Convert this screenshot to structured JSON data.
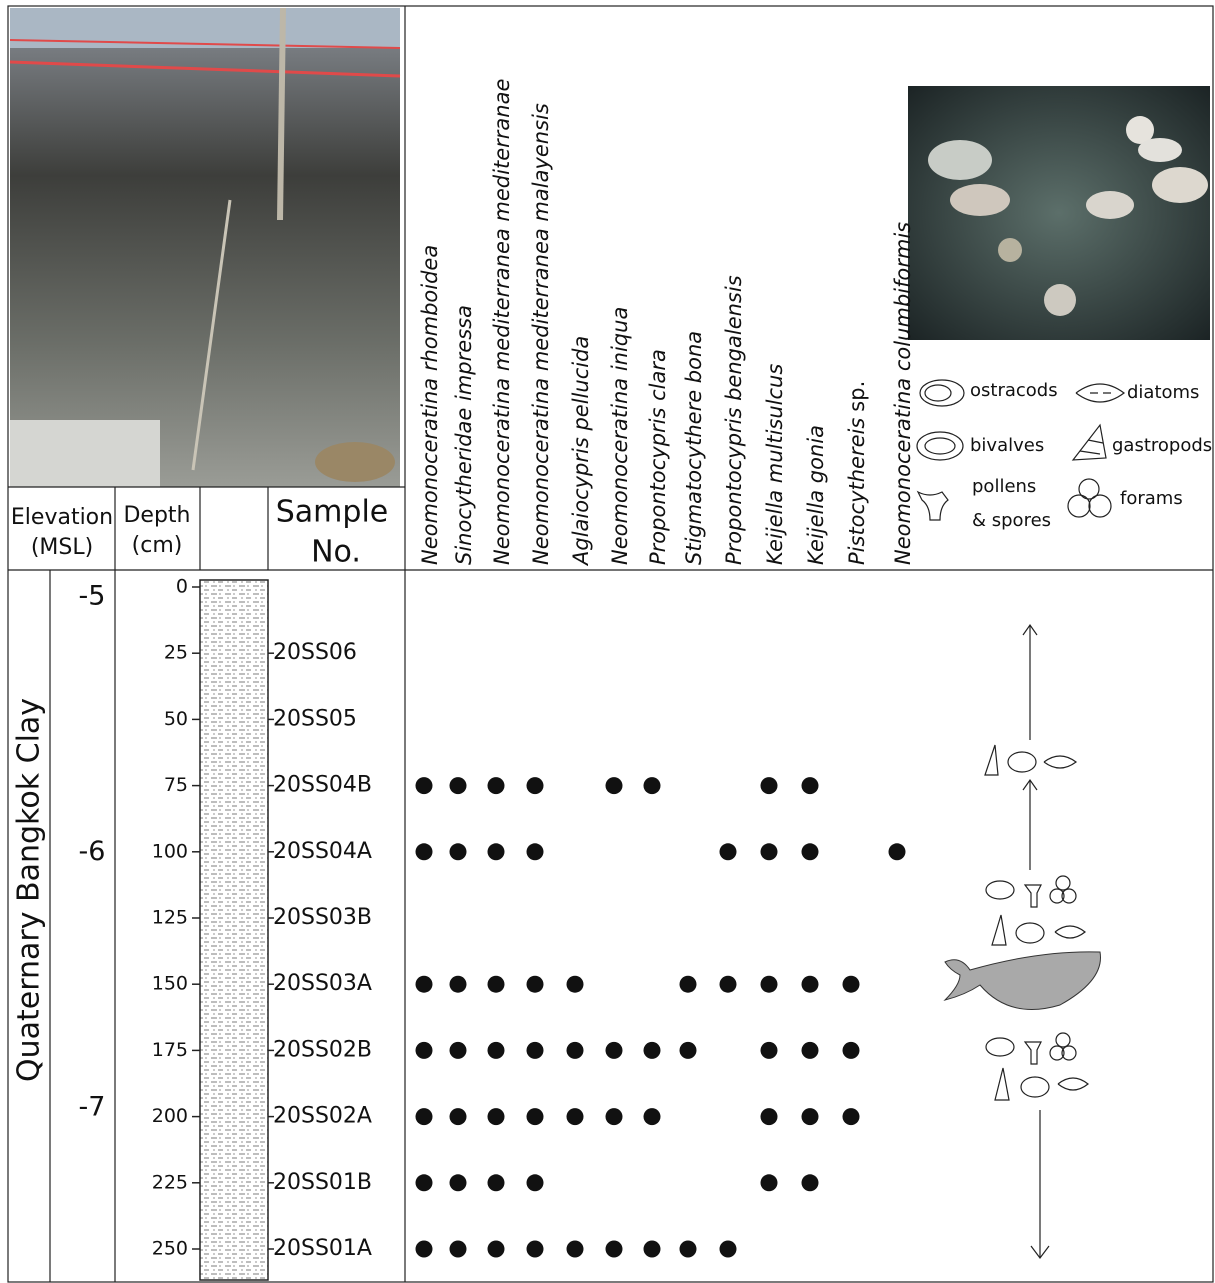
{
  "header": {
    "elevation": [
      "Elevation",
      "(MSL)"
    ],
    "depth": [
      "Depth",
      "(cm)"
    ],
    "sample": [
      "Sample",
      "No."
    ]
  },
  "formation": "Quaternary Bangkok Clay",
  "elevation_labels": [
    -5,
    -6,
    -7
  ],
  "depth_ticks": [
    0,
    25,
    50,
    75,
    100,
    125,
    150,
    175,
    200,
    225,
    250
  ],
  "species": [
    {
      "name": "Neomonoceratina rhomboidea"
    },
    {
      "name": "Sinocytheridae impressa"
    },
    {
      "name": "Neomonoceratina mediterranea mediterranae"
    },
    {
      "name": "Neomonoceratina mediterranea malayensis"
    },
    {
      "name": "Aglaiocypris pellucida"
    },
    {
      "name": "Neomonoceratina iniqua"
    },
    {
      "name": "Propontocypris clara"
    },
    {
      "name": "Stigmatocythere bona"
    },
    {
      "name": "Propontocypris bengalensis"
    },
    {
      "name": "Keijella multisulcus"
    },
    {
      "name": "Keijella gonia"
    },
    {
      "name": "Pistocythereis",
      "qualifier": "sp."
    },
    {
      "name": "Neomonoceratina columbiformis"
    }
  ],
  "samples": [
    {
      "label": "20SS06",
      "depth": 25
    },
    {
      "label": "20SS05",
      "depth": 50
    },
    {
      "label": "20SS04B",
      "depth": 75
    },
    {
      "label": "20SS04A",
      "depth": 100
    },
    {
      "label": "20SS03B",
      "depth": 125
    },
    {
      "label": "20SS03A",
      "depth": 150
    },
    {
      "label": "20SS02B",
      "depth": 175
    },
    {
      "label": "20SS02A",
      "depth": 200
    },
    {
      "label": "20SS01B",
      "depth": 225
    },
    {
      "label": "20SS01A",
      "depth": 250
    }
  ],
  "occurrences": [
    [
      false,
      false,
      false,
      false,
      false,
      false,
      false,
      false,
      false,
      false,
      false,
      false,
      false
    ],
    [
      false,
      false,
      false,
      false,
      false,
      false,
      false,
      false,
      false,
      false,
      false,
      false,
      false
    ],
    [
      true,
      true,
      true,
      true,
      false,
      true,
      true,
      false,
      false,
      true,
      true,
      false,
      false
    ],
    [
      true,
      true,
      true,
      true,
      false,
      false,
      false,
      false,
      true,
      true,
      true,
      false,
      true
    ],
    [
      false,
      false,
      false,
      false,
      false,
      false,
      false,
      false,
      false,
      false,
      false,
      false,
      false
    ],
    [
      true,
      true,
      true,
      true,
      true,
      false,
      false,
      true,
      true,
      true,
      true,
      true,
      false
    ],
    [
      true,
      true,
      true,
      true,
      true,
      true,
      true,
      true,
      false,
      true,
      true,
      true,
      false
    ],
    [
      true,
      true,
      true,
      true,
      true,
      true,
      true,
      false,
      false,
      true,
      true,
      true,
      false
    ],
    [
      true,
      true,
      true,
      true,
      false,
      false,
      false,
      false,
      false,
      true,
      true,
      false,
      false
    ],
    [
      true,
      true,
      true,
      true,
      true,
      true,
      true,
      true,
      true,
      false,
      false,
      false,
      false
    ]
  ],
  "legend": {
    "ostracods": "ostracods",
    "diatoms": "diatoms",
    "bivalves": "bivalves",
    "gastropods": "gastropods",
    "pollens": [
      "pollens",
      "& spores"
    ],
    "forams": "forams"
  }
}
